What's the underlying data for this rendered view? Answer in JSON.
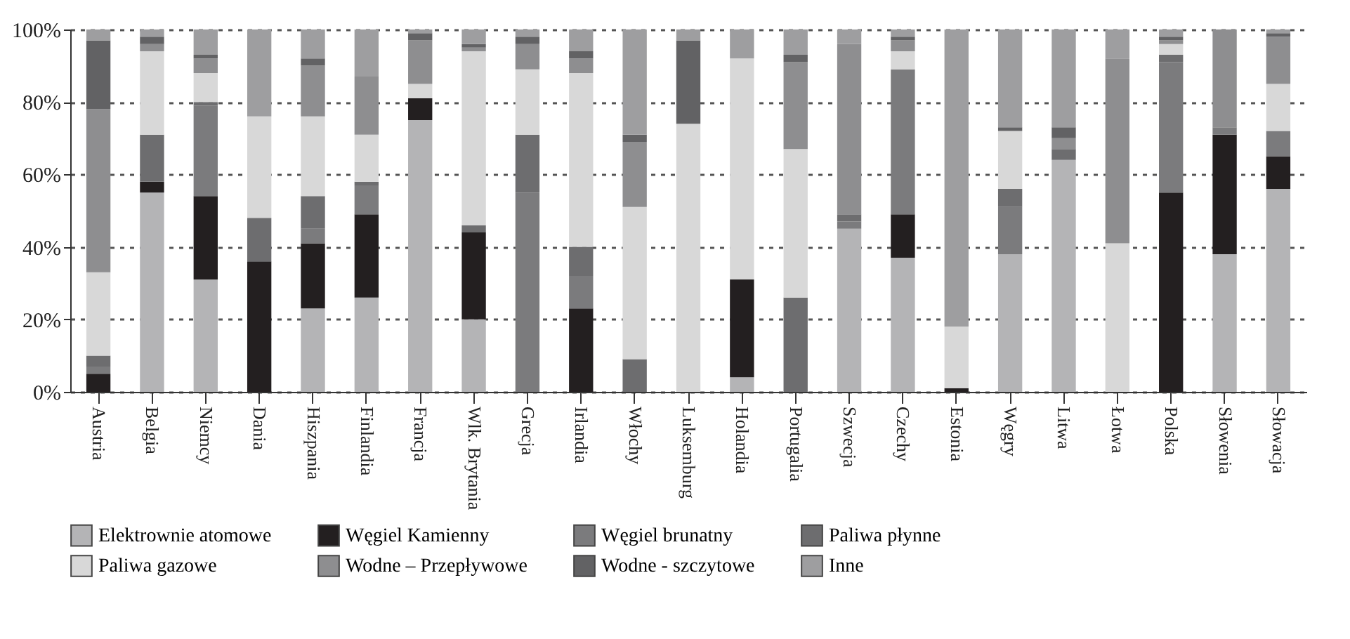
{
  "chart_data": {
    "type": "bar",
    "stacked": true,
    "legend": "bottom",
    "grid": "y",
    "categories": [
      "Austria",
      "Belgia",
      "Niemcy",
      "Dania",
      "Hiszpania",
      "Finlandia",
      "Francja",
      "Wlk. Brytania",
      "Grecja",
      "Irlandia",
      "Włochy",
      "Luksemburg",
      "Holandia",
      "Portugalia",
      "Szwecja",
      "Czechy",
      "Estonia",
      "Węgry",
      "Litwa",
      "Łotwa",
      "Polska",
      "Słowenia",
      "Słowacja"
    ],
    "ylim": [
      0,
      100
    ],
    "yticks": [
      {
        "value": 0,
        "label": "0%"
      },
      {
        "value": 20,
        "label": "20%"
      },
      {
        "value": 40,
        "label": "40%"
      },
      {
        "value": 60,
        "label": "60%"
      },
      {
        "value": 80,
        "label": "80%"
      },
      {
        "value": 100,
        "label": "100%"
      }
    ],
    "series": [
      {
        "name": "Elektrownie atomowe",
        "color": "#b4b4b6",
        "values": [
          0,
          55,
          31,
          0,
          23,
          26,
          75,
          20,
          0,
          0,
          0,
          0,
          4,
          0,
          45,
          37,
          0,
          38,
          64,
          0,
          0,
          38,
          56
        ]
      },
      {
        "name": "Węgiel Kamienny",
        "color": "#231f20",
        "values": [
          5,
          3,
          23,
          36,
          18,
          23,
          6,
          24,
          0,
          23,
          0,
          0,
          27,
          0,
          0,
          12,
          1,
          0,
          0,
          0,
          55,
          33,
          9
        ]
      },
      {
        "name": "Węgiel brunatny",
        "color": "#7b7b7d",
        "values": [
          2,
          0,
          25,
          0,
          4,
          8,
          0,
          0,
          55,
          9,
          0,
          0,
          0,
          0,
          2,
          40,
          0,
          13,
          0,
          0,
          36,
          2,
          7
        ]
      },
      {
        "name": "Paliwa płynne",
        "color": "#6d6d6f",
        "values": [
          3,
          13,
          1,
          12,
          9,
          1,
          0,
          2,
          16,
          8,
          9,
          0,
          0,
          26,
          2,
          0,
          0,
          5,
          3,
          0,
          2,
          0,
          0
        ]
      },
      {
        "name": "Paliwa gazowe",
        "color": "#d8d8d8",
        "values": [
          23,
          23,
          8,
          28,
          22,
          13,
          4,
          48,
          18,
          48,
          42,
          74,
          61,
          41,
          0,
          5,
          17,
          16,
          0,
          41,
          3,
          0,
          13
        ]
      },
      {
        "name": "Wodne – Przepływowe",
        "color": "#8e8e90",
        "values": [
          45,
          2,
          4,
          0,
          14,
          16,
          12,
          1,
          7,
          4,
          18,
          0,
          0,
          24,
          47,
          3,
          0,
          0,
          3,
          51,
          1,
          27,
          13
        ]
      },
      {
        "name": "Wodne - szczytowe",
        "color": "#626264",
        "values": [
          19,
          2,
          1,
          0,
          2,
          0,
          2,
          1,
          2,
          2,
          2,
          23,
          0,
          2,
          0,
          1,
          0,
          1,
          3,
          0,
          1,
          0,
          1
        ]
      },
      {
        "name": "Inne",
        "color": "#9e9ea0",
        "values": [
          3,
          2,
          7,
          24,
          8,
          13,
          1,
          4,
          2,
          6,
          29,
          3,
          8,
          7,
          4,
          2,
          82,
          27,
          27,
          8,
          2,
          0,
          1
        ]
      }
    ]
  }
}
